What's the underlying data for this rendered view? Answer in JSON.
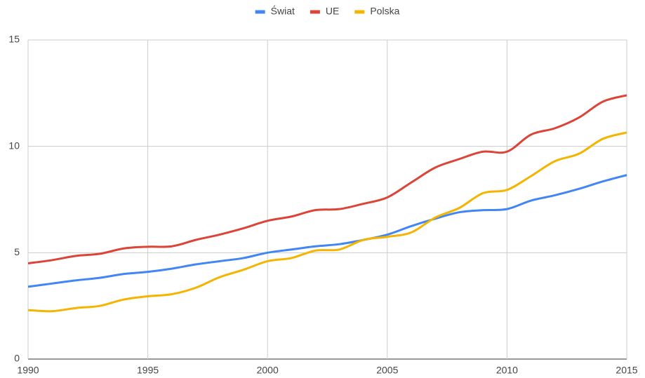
{
  "chart_data": {
    "type": "line",
    "x": [
      1990,
      1991,
      1992,
      1993,
      1994,
      1995,
      1996,
      1997,
      1998,
      1999,
      2000,
      2001,
      2002,
      2003,
      2004,
      2005,
      2006,
      2007,
      2008,
      2009,
      2010,
      2011,
      2012,
      2013,
      2014,
      2015
    ],
    "series": [
      {
        "name": "Świat",
        "color": "#4285f4",
        "values": [
          3.4,
          3.55,
          3.7,
          3.82,
          4.0,
          4.1,
          4.25,
          4.45,
          4.6,
          4.75,
          5.0,
          5.15,
          5.3,
          5.4,
          5.6,
          5.85,
          6.25,
          6.6,
          6.9,
          7.0,
          7.05,
          7.45,
          7.7,
          8.0,
          8.35,
          8.65
        ]
      },
      {
        "name": "UE",
        "color": "#db4437",
        "values": [
          4.5,
          4.65,
          4.85,
          4.95,
          5.2,
          5.28,
          5.3,
          5.6,
          5.85,
          6.15,
          6.5,
          6.7,
          7.0,
          7.05,
          7.3,
          7.6,
          8.3,
          9.0,
          9.4,
          9.75,
          9.75,
          10.55,
          10.85,
          11.35,
          12.1,
          12.4
        ]
      },
      {
        "name": "Polska",
        "color": "#f4b400",
        "values": [
          2.3,
          2.25,
          2.4,
          2.5,
          2.8,
          2.95,
          3.05,
          3.35,
          3.85,
          4.2,
          4.6,
          4.75,
          5.1,
          5.15,
          5.6,
          5.75,
          5.95,
          6.65,
          7.1,
          7.8,
          7.95,
          8.6,
          9.3,
          9.65,
          10.35,
          10.65
        ]
      }
    ],
    "xlim": [
      1990,
      2015
    ],
    "xticks": [
      1990,
      1995,
      2000,
      2005,
      2010,
      2015
    ],
    "ylim": [
      0,
      15
    ],
    "yticks": [
      0,
      5,
      10,
      15
    ],
    "grid": true,
    "legend": "top"
  }
}
